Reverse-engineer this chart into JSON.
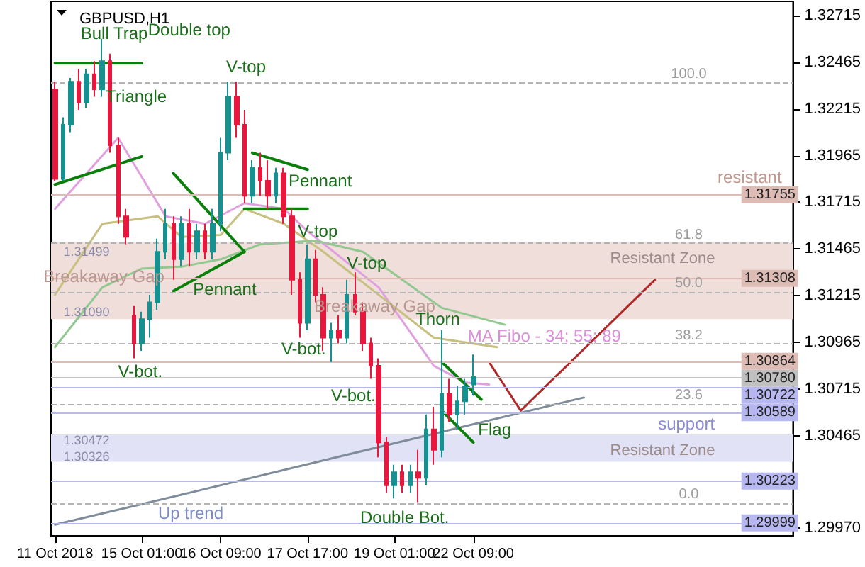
{
  "chart_data": {
    "type": "candlestick",
    "title": "GBPUSD,H1",
    "categories": [
      "11 Oct 2018",
      null,
      null,
      null,
      null,
      null,
      null,
      null,
      null,
      null,
      null,
      "15 Oct 01:00",
      null,
      null,
      null,
      null,
      null,
      null,
      null,
      null,
      null,
      "16 Oct 09:00",
      null,
      null,
      null,
      null,
      null,
      null,
      null,
      null,
      null,
      null,
      "17 Oct 17:00",
      null,
      null,
      null,
      null,
      null,
      null,
      null,
      null,
      null,
      null,
      "19 Oct 01:00",
      null,
      null,
      null,
      null,
      null,
      null,
      null,
      null,
      null,
      "22 Oct 09:00",
      null,
      null,
      null,
      null,
      null,
      null,
      null,
      null,
      null,
      null,
      null,
      null,
      null,
      null,
      null,
      null,
      null,
      null,
      null,
      null,
      null,
      null,
      null,
      null,
      null,
      null,
      null,
      null,
      null,
      null,
      null,
      null,
      null,
      null,
      null,
      null,
      null,
      null,
      null,
      null
    ],
    "ylim": [
      1.2993,
      1.3279
    ],
    "yticks": [
      1.32715,
      1.32465,
      1.32215,
      1.31965,
      1.31715,
      1.31465,
      1.31215,
      1.30965,
      1.30715,
      1.30465,
      {
        "value": 1.2997,
        "label": "1.29970"
      }
    ],
    "grid": false,
    "marker": "none",
    "series": [
      {
        "ohlc": [
          [
            1.3232,
            1.3236,
            1.3183,
            1.3184
          ],
          [
            1.3184,
            1.3217,
            1.3183,
            1.3213
          ],
          [
            1.3213,
            1.3238,
            1.3209,
            1.3236
          ],
          [
            1.3236,
            1.3243,
            1.3221,
            1.3225
          ],
          [
            1.3225,
            1.3243,
            1.3222,
            1.324
          ],
          [
            1.324,
            1.3247,
            1.3228,
            1.3232
          ],
          [
            1.3232,
            1.3259,
            1.3228,
            1.3247
          ],
          [
            1.3247,
            1.3251,
            1.3198,
            1.3202
          ],
          [
            1.3202,
            1.3206,
            1.316,
            1.3164
          ],
          [
            1.3164,
            1.3168,
            1.3149,
            1.3153
          ],
          [
            1.3111,
            1.3116,
            1.3088,
            1.3096
          ],
          [
            1.3096,
            1.3113,
            1.3092,
            1.3109
          ],
          [
            1.3109,
            1.3122,
            1.3099,
            1.3118
          ],
          [
            1.3118,
            1.3152,
            1.3114,
            1.3145
          ],
          [
            1.3145,
            1.3168,
            1.3141,
            1.316
          ],
          [
            1.316,
            1.3164,
            1.313,
            1.3141
          ],
          [
            1.3141,
            1.3164,
            1.3137,
            1.316
          ],
          [
            1.316,
            1.3168,
            1.3137,
            1.3145
          ],
          [
            1.3145,
            1.316,
            1.3141,
            1.3156
          ],
          [
            1.3156,
            1.316,
            1.3141,
            1.3145
          ],
          [
            1.3145,
            1.3168,
            1.3141,
            1.316
          ],
          [
            1.316,
            1.3206,
            1.3156,
            1.3198
          ],
          [
            1.3198,
            1.3236,
            1.3194,
            1.3228
          ],
          [
            1.3228,
            1.3236,
            1.3206,
            1.3213
          ],
          [
            1.3213,
            1.3221,
            1.3171,
            1.3175
          ],
          [
            1.3175,
            1.3194,
            1.3171,
            1.319
          ],
          [
            1.319,
            1.3198,
            1.3175,
            1.3183
          ],
          [
            1.3183,
            1.3194,
            1.3168,
            1.3175
          ],
          [
            1.3175,
            1.319,
            1.3171,
            1.3187
          ],
          [
            1.3187,
            1.319,
            1.316,
            1.3164
          ],
          [
            1.3164,
            1.3168,
            1.3122,
            1.313
          ],
          [
            1.313,
            1.3134,
            1.3099,
            1.3107
          ],
          [
            1.3107,
            1.3149,
            1.3103,
            1.3141
          ],
          [
            1.3141,
            1.3146,
            1.3118,
            1.3122
          ],
          [
            1.3122,
            1.3126,
            1.3092,
            1.3099
          ],
          [
            1.3099,
            1.3107,
            1.3086,
            1.3103
          ],
          [
            1.3103,
            1.3111,
            1.3096,
            1.3099
          ],
          [
            1.3099,
            1.313,
            1.3096,
            1.3122
          ],
          [
            1.3122,
            1.3134,
            1.3111,
            1.3113
          ],
          [
            1.3113,
            1.3118,
            1.3092,
            1.3096
          ],
          [
            1.3096,
            1.3099,
            1.3077,
            1.3084
          ],
          [
            1.3084,
            1.3088,
            1.3035,
            1.3043
          ],
          [
            1.3043,
            1.3046,
            1.3016,
            1.302
          ],
          [
            1.302,
            1.3031,
            1.3013,
            1.3027
          ],
          [
            1.3027,
            1.3031,
            1.3016,
            1.302
          ],
          [
            1.302,
            1.3031,
            1.3016,
            1.3027
          ],
          [
            1.3027,
            1.3039,
            1.3011,
            1.3024
          ],
          [
            1.3024,
            1.3058,
            1.302,
            1.305
          ],
          [
            1.305,
            1.3062,
            1.3031,
            1.3039
          ],
          [
            1.3039,
            1.3103,
            1.3035,
            1.3069
          ],
          [
            1.3069,
            1.3077,
            1.3054,
            1.3058
          ],
          [
            1.3058,
            1.3073,
            1.305,
            1.3065
          ],
          [
            1.3065,
            1.3077,
            1.3058,
            1.3073
          ],
          [
            1.3074,
            1.309,
            1.3068,
            1.3078
          ],
          null,
          null,
          null,
          null,
          null,
          null,
          null,
          null,
          null,
          null,
          null,
          null,
          null,
          null,
          null,
          null,
          null,
          null,
          null,
          null,
          null,
          null,
          null,
          null,
          null,
          null,
          null,
          null,
          null,
          null,
          null,
          null,
          null,
          null,
          null,
          null,
          null,
          null,
          null,
          null
        ]
      },
      {
        "type": "line",
        "color": "#e0a0e0",
        "values": [
          1.3168,
          null,
          null,
          null,
          null,
          null,
          null,
          null,
          1.3206,
          null,
          null,
          null,
          null,
          null,
          1.3164,
          null,
          null,
          null,
          null,
          1.316,
          null,
          null,
          null,
          null,
          1.3171,
          null,
          null,
          null,
          null,
          1.3168,
          null,
          null,
          1.3156,
          null,
          null,
          null,
          null,
          null,
          null,
          null,
          null,
          1.3126,
          null,
          null,
          null,
          null,
          null,
          null,
          1.3084,
          null,
          null,
          null,
          1.3075,
          null,
          null,
          1.3074,
          null,
          null,
          null,
          null,
          null,
          null,
          null,
          null,
          null,
          null,
          null,
          null,
          null,
          null,
          null,
          null,
          null,
          null,
          null,
          null,
          null,
          null,
          null,
          null,
          null,
          null,
          null,
          null,
          null,
          null,
          null,
          null,
          null,
          null,
          null,
          null,
          null,
          null
        ]
      },
      {
        "type": "line",
        "color": "#c8c080",
        "values": [
          1.3122,
          null,
          null,
          null,
          null,
          null,
          1.316,
          null,
          null,
          null,
          null,
          null,
          null,
          1.3164,
          null,
          null,
          1.3153,
          null,
          null,
          null,
          null,
          1.3154,
          null,
          null,
          1.3168,
          null,
          null,
          null,
          null,
          1.316,
          null,
          null,
          null,
          null,
          1.3145,
          null,
          null,
          null,
          null,
          null,
          null,
          1.3122,
          null,
          null,
          null,
          null,
          null,
          null,
          1.3099,
          null,
          null,
          null,
          null,
          null,
          null,
          null,
          1.3094,
          null,
          null,
          null,
          null,
          null,
          null,
          null,
          null,
          null,
          null,
          null,
          null,
          null,
          null,
          null,
          null,
          null,
          null,
          null,
          null,
          null,
          null,
          null,
          null,
          null,
          null,
          null,
          null,
          null,
          null,
          null,
          null,
          null,
          null,
          null,
          null,
          null
        ]
      },
      {
        "type": "line",
        "color": "#90c890",
        "values": [
          1.3094,
          null,
          null,
          null,
          null,
          null,
          1.3126,
          null,
          null,
          null,
          null,
          1.3136,
          null,
          null,
          null,
          null,
          1.3137,
          null,
          null,
          null,
          null,
          1.3141,
          null,
          null,
          null,
          null,
          1.3149,
          null,
          null,
          null,
          null,
          null,
          null,
          1.3151,
          null,
          null,
          null,
          null,
          null,
          1.3145,
          null,
          null,
          null,
          null,
          1.313,
          null,
          null,
          null,
          null,
          1.3115,
          null,
          null,
          null,
          null,
          null,
          null,
          null,
          1.3106,
          null,
          null,
          null,
          null,
          null,
          null,
          null,
          null,
          null,
          null,
          null,
          null,
          null,
          null,
          null,
          null,
          null,
          null,
          null,
          null,
          null,
          null,
          null,
          null,
          null,
          null,
          null,
          null,
          null,
          null,
          null,
          null,
          null,
          null,
          null,
          null
        ]
      },
      {
        "type": "line",
        "color": "#7f8c99",
        "values": [
          1.2999,
          null,
          null,
          null,
          null,
          null,
          null,
          null,
          null,
          null,
          null,
          null,
          null,
          null,
          null,
          null,
          null,
          1.3016,
          null,
          null,
          null,
          null,
          null,
          null,
          null,
          null,
          null,
          null,
          null,
          null,
          null,
          null,
          null,
          null,
          null,
          null,
          null,
          null,
          null,
          null,
          null,
          null,
          null,
          null,
          null,
          null,
          null,
          null,
          null,
          null,
          null,
          null,
          null,
          null,
          null,
          null,
          null,
          null,
          null,
          null,
          null,
          null,
          null,
          null,
          null,
          null,
          null,
          1.3067,
          null,
          null,
          null,
          null,
          null,
          null,
          null,
          null,
          null,
          null,
          null,
          null,
          null,
          null,
          null,
          null,
          null,
          null,
          null,
          null,
          null,
          null,
          null,
          null,
          null,
          null
        ]
      },
      {
        "type": "line",
        "color": "#b02828",
        "values": [
          null,
          null,
          null,
          null,
          null,
          null,
          null,
          null,
          null,
          null,
          null,
          null,
          null,
          null,
          null,
          null,
          null,
          null,
          null,
          null,
          null,
          null,
          null,
          null,
          null,
          null,
          null,
          null,
          null,
          null,
          null,
          null,
          null,
          null,
          null,
          null,
          null,
          null,
          null,
          null,
          null,
          null,
          null,
          null,
          null,
          null,
          null,
          null,
          null,
          null,
          null,
          null,
          null,
          null,
          null,
          1.3086,
          null,
          null,
          null,
          1.306,
          null,
          null,
          null,
          null,
          null,
          null,
          null,
          null,
          null,
          null,
          null,
          null,
          null,
          null,
          null,
          null,
          1.313,
          null,
          null,
          null,
          null,
          null,
          null,
          null,
          null,
          null,
          null,
          null,
          null,
          null,
          null,
          null,
          null,
          null
        ]
      },
      {
        "type": "line",
        "color": "#0a800a",
        "values": [
          1.3246,
          null,
          null,
          null,
          null,
          null,
          null,
          null,
          null,
          null,
          null,
          1.3246,
          null,
          null,
          null,
          null,
          null,
          null,
          null,
          null,
          null,
          null,
          null,
          null,
          null,
          null,
          null,
          null,
          null,
          null,
          null,
          null,
          null,
          null,
          null,
          null,
          null,
          null,
          null,
          null,
          null,
          null,
          null,
          null,
          null,
          null,
          null,
          null,
          null,
          null,
          null,
          null,
          null,
          null,
          null,
          null,
          null,
          null,
          null,
          null,
          null,
          null,
          null,
          null,
          null,
          null,
          null,
          null,
          null,
          null,
          null,
          null,
          null,
          null,
          null,
          null,
          null,
          null,
          null,
          null,
          null,
          null,
          null,
          null,
          null,
          null,
          null,
          null,
          null,
          null,
          null,
          null,
          null,
          null
        ]
      },
      {
        "type": "line",
        "color": "#0a800a",
        "values": [
          1.3181,
          null,
          null,
          null,
          null,
          null,
          null,
          null,
          null,
          null,
          null,
          1.3196,
          null,
          null,
          null,
          null,
          null,
          null,
          null,
          null,
          null,
          null,
          null,
          null,
          null,
          null,
          null,
          null,
          null,
          null,
          null,
          null,
          null,
          null,
          null,
          null,
          null,
          null,
          null,
          null,
          null,
          null,
          null,
          null,
          null,
          null,
          null,
          null,
          null,
          null,
          null,
          null,
          null,
          null,
          null,
          null,
          null,
          null,
          null,
          null,
          null,
          null,
          null,
          null,
          null,
          null,
          null,
          null,
          null,
          null,
          null,
          null,
          null,
          null,
          null,
          null,
          null,
          null,
          null,
          null,
          null,
          null,
          null,
          null,
          null,
          null,
          null,
          null,
          null,
          null,
          null,
          null,
          null,
          null
        ]
      },
      {
        "type": "line",
        "color": "#0a800a",
        "values": [
          null,
          null,
          null,
          null,
          null,
          null,
          null,
          null,
          null,
          null,
          null,
          null,
          null,
          null,
          null,
          1.3187,
          null,
          null,
          null,
          null,
          null,
          null,
          null,
          null,
          1.3145,
          null,
          null,
          null,
          null,
          null,
          null,
          null,
          null,
          null,
          null,
          null,
          null,
          null,
          null,
          null,
          null,
          null,
          null,
          null,
          null,
          null,
          null,
          null,
          null,
          null,
          null,
          null,
          null,
          null,
          null,
          null,
          null,
          null,
          null,
          null,
          null,
          null,
          null,
          null,
          null,
          null,
          null,
          null,
          null,
          null,
          null,
          null,
          null,
          null,
          null,
          null,
          null,
          null,
          null,
          null,
          null,
          null,
          null,
          null,
          null,
          null,
          null,
          null,
          null,
          null,
          null,
          null,
          null,
          null
        ]
      },
      {
        "type": "line",
        "color": "#0a800a",
        "values": [
          null,
          null,
          null,
          null,
          null,
          null,
          null,
          null,
          null,
          null,
          null,
          null,
          null,
          null,
          null,
          1.3124,
          null,
          null,
          null,
          null,
          null,
          null,
          null,
          null,
          1.3145,
          null,
          null,
          null,
          null,
          null,
          null,
          null,
          null,
          null,
          null,
          null,
          null,
          null,
          null,
          null,
          null,
          null,
          null,
          null,
          null,
          null,
          null,
          null,
          null,
          null,
          null,
          null,
          null,
          null,
          null,
          null,
          null,
          null,
          null,
          null,
          null,
          null,
          null,
          null,
          null,
          null,
          null,
          null,
          null,
          null,
          null,
          null,
          null,
          null,
          null,
          null,
          null,
          null,
          null,
          null,
          null,
          null,
          null,
          null,
          null,
          null,
          null,
          null,
          null,
          null,
          null,
          null,
          null,
          null
        ]
      },
      {
        "type": "line",
        "color": "#0a800a",
        "values": [
          null,
          null,
          null,
          null,
          null,
          null,
          null,
          null,
          null,
          null,
          null,
          null,
          null,
          null,
          null,
          null,
          null,
          null,
          null,
          null,
          null,
          null,
          null,
          null,
          null,
          1.3198,
          null,
          null,
          null,
          null,
          null,
          null,
          1.3189,
          null,
          null,
          null,
          null,
          null,
          null,
          null,
          null,
          null,
          null,
          null,
          null,
          null,
          null,
          null,
          null,
          null,
          null,
          null,
          null,
          null,
          null,
          null,
          null,
          null,
          null,
          null,
          null,
          null,
          null,
          null,
          null,
          null,
          null,
          null,
          null,
          null,
          null,
          null,
          null,
          null,
          null,
          null,
          null,
          null,
          null,
          null,
          null,
          null,
          null,
          null,
          null,
          null,
          null,
          null,
          null,
          null,
          null,
          null,
          null,
          null
        ]
      },
      {
        "type": "line",
        "color": "#0a800a",
        "values": [
          null,
          null,
          null,
          null,
          null,
          null,
          null,
          null,
          null,
          null,
          null,
          null,
          null,
          null,
          null,
          null,
          null,
          null,
          null,
          null,
          null,
          null,
          null,
          null,
          1.3168,
          null,
          null,
          null,
          null,
          null,
          null,
          null,
          1.3168,
          null,
          null,
          null,
          null,
          null,
          null,
          null,
          null,
          null,
          null,
          null,
          null,
          null,
          null,
          null,
          null,
          null,
          null,
          null,
          null,
          null,
          null,
          null,
          null,
          null,
          null,
          null,
          null,
          null,
          null,
          null,
          null,
          null,
          null,
          null,
          null,
          null,
          null,
          null,
          null,
          null,
          null,
          null,
          null,
          null,
          null,
          null,
          null,
          null,
          null,
          null,
          null,
          null,
          null,
          null,
          null,
          null,
          null,
          null,
          null,
          null
        ]
      },
      {
        "type": "line",
        "color": "#0a800a",
        "values": [
          null,
          null,
          null,
          null,
          null,
          null,
          null,
          null,
          null,
          null,
          null,
          null,
          null,
          null,
          null,
          null,
          null,
          null,
          null,
          null,
          null,
          null,
          null,
          null,
          null,
          null,
          null,
          null,
          null,
          null,
          null,
          null,
          null,
          null,
          null,
          null,
          null,
          null,
          null,
          null,
          null,
          null,
          null,
          null,
          null,
          null,
          null,
          null,
          null,
          1.3086,
          null,
          null,
          null,
          null,
          1.3066,
          null,
          null,
          null,
          null,
          null,
          null,
          null,
          null,
          null,
          null,
          null,
          null,
          null,
          null,
          null,
          null,
          null,
          null,
          null,
          null,
          null,
          null,
          null,
          null,
          null,
          null,
          null,
          null,
          null,
          null,
          null,
          null,
          null,
          null,
          null,
          null,
          null,
          null,
          null
        ]
      },
      {
        "type": "line",
        "color": "#0a800a",
        "values": [
          null,
          null,
          null,
          null,
          null,
          null,
          null,
          null,
          null,
          null,
          null,
          null,
          null,
          null,
          null,
          null,
          null,
          null,
          null,
          null,
          null,
          null,
          null,
          null,
          null,
          null,
          null,
          null,
          null,
          null,
          null,
          null,
          null,
          null,
          null,
          null,
          null,
          null,
          null,
          null,
          null,
          null,
          null,
          null,
          null,
          null,
          null,
          null,
          null,
          1.306,
          null,
          null,
          null,
          1.3043,
          null,
          null,
          null,
          null,
          null,
          null,
          null,
          null,
          null,
          null,
          null,
          null,
          null,
          null,
          null,
          null,
          null,
          null,
          null,
          null,
          null,
          null,
          null,
          null,
          null,
          null,
          null,
          null,
          null,
          null,
          null,
          null,
          null,
          null,
          null,
          null,
          null,
          null,
          null,
          null
        ]
      }
    ],
    "ref_lines": [
      {
        "axis": "y",
        "value": 1.31755,
        "label": "1.31755",
        "color": "#dcbcb4",
        "line_style": "solid"
      },
      {
        "axis": "y",
        "value": 1.31308,
        "label": "1.31308",
        "color": "#dcbcb4",
        "line_style": "solid"
      },
      {
        "axis": "y",
        "value": 1.30864,
        "label": "1.30864",
        "color": "#dcbcb4",
        "line_style": "solid"
      },
      {
        "axis": "y",
        "value": 1.3078,
        "label": "1.30780",
        "color": "#c0c0c0",
        "line_style": "solid"
      },
      {
        "axis": "y",
        "value": 1.30722,
        "label": "1.30722",
        "color": "#b8b8f0",
        "line_style": "solid"
      },
      {
        "axis": "y",
        "value": 1.30589,
        "label": "1.30589",
        "color": "#b8b8f0",
        "line_style": "solid"
      },
      {
        "axis": "y",
        "value": 1.30223,
        "label": "1.30223",
        "color": "#b8b8f0",
        "line_style": "solid"
      },
      {
        "axis": "y",
        "value": 1.29999,
        "label": "1.29999",
        "color": "#b8b8f0",
        "line_style": "solid"
      },
      {
        "axis": "y",
        "value": 1.32359,
        "color": "#b4b4b4",
        "line_style": "dashed"
      },
      {
        "axis": "y",
        "value": 1.31495,
        "color": "#b4b4b4",
        "line_style": "dashed"
      },
      {
        "axis": "y",
        "value": 1.3123,
        "color": "#b4b4b4",
        "line_style": "dashed"
      },
      {
        "axis": "y",
        "value": 1.30957,
        "color": "#b4b4b4",
        "line_style": "dashed"
      },
      {
        "axis": "y",
        "value": 1.30632,
        "color": "#b4b4b4",
        "line_style": "dashed"
      },
      {
        "axis": "y",
        "value": 1.30101,
        "color": "#b4b4b4",
        "line_style": "dashed"
      }
    ],
    "bands": [
      {
        "axis": "y",
        "from": 1.3109,
        "to": 1.31499,
        "label": "Resistant Zone",
        "color": "#f0dedb"
      },
      {
        "axis": "y",
        "from": 1.30326,
        "to": 1.30472,
        "label": "Resistant Zone",
        "color": "#e2e2f6"
      }
    ],
    "annotations": [
      "Bull Trap",
      "Double top",
      "Triangle",
      "Breakaway Gap",
      "Pennant",
      "V-bot.",
      "V-top",
      "Pennant",
      "V-top",
      "V-bot.",
      "Breakaway Gap",
      "V-top",
      "V-bot.",
      "Thorn",
      "MA Fibo - 34; 55; 89",
      "Flag",
      "Up trend",
      "Double Bot.",
      "100.0",
      "61.8",
      "50.0",
      "38.2",
      "23.6",
      "0.0",
      "resistant",
      "support",
      "1.31499",
      "1.31090",
      "1.30472",
      "1.30326"
    ]
  }
}
